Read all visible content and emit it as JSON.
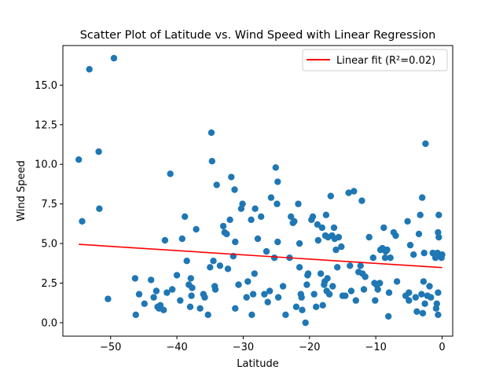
{
  "chart_data": {
    "type": "scatter",
    "title": "Scatter Plot of Latitude vs. Wind Speed with Linear Regression",
    "xlabel": "Latitude",
    "ylabel": "Wind Speed",
    "xlim": [
      -57.2,
      1.6
    ],
    "ylim": [
      -0.85,
      17.5
    ],
    "xticks": [
      -50,
      -40,
      -30,
      -20,
      -10,
      0
    ],
    "xtick_labels": [
      "−50",
      "−40",
      "−30",
      "−20",
      "−10",
      "0"
    ],
    "yticks": [
      0.0,
      2.5,
      5.0,
      7.5,
      10.0,
      12.5,
      15.0
    ],
    "ytick_labels": [
      "0.0",
      "2.5",
      "5.0",
      "7.5",
      "10.0",
      "12.5",
      "15.0"
    ],
    "grid": false,
    "legend_position": "upper right",
    "colors": {
      "points": "#1f77b4",
      "fit_line": "#ff0000"
    },
    "series": [
      {
        "name": "",
        "type": "scatter",
        "points": [
          [
            -54.8,
            10.3
          ],
          [
            -54.3,
            6.4
          ],
          [
            -53.2,
            16.0
          ],
          [
            -51.8,
            10.8
          ],
          [
            -51.7,
            7.2
          ],
          [
            -50.4,
            1.5
          ],
          [
            -49.5,
            16.7
          ],
          [
            -46.3,
            2.8
          ],
          [
            -46.2,
            0.5
          ],
          [
            -45.7,
            1.8
          ],
          [
            -44.9,
            1.2
          ],
          [
            -43.9,
            2.7
          ],
          [
            -43.5,
            1.6
          ],
          [
            -43.1,
            2.0
          ],
          [
            -42.9,
            1.0
          ],
          [
            -42.7,
            0.9
          ],
          [
            -42.5,
            1.1
          ],
          [
            -42.0,
            0.8
          ],
          [
            -41.8,
            5.2
          ],
          [
            -41.5,
            1.9
          ],
          [
            -41.0,
            9.4
          ],
          [
            -40.7,
            2.1
          ],
          [
            -40.0,
            3.0
          ],
          [
            -39.5,
            1.4
          ],
          [
            -39.2,
            5.3
          ],
          [
            -38.8,
            6.7
          ],
          [
            -38.5,
            3.9
          ],
          [
            -38.2,
            2.4
          ],
          [
            -38.0,
            1.0
          ],
          [
            -37.9,
            2.8
          ],
          [
            -37.8,
            1.7
          ],
          [
            -37.7,
            2.2
          ],
          [
            -37.1,
            5.9
          ],
          [
            -36.5,
            0.9
          ],
          [
            -36.0,
            1.8
          ],
          [
            -35.8,
            1.6
          ],
          [
            -35.3,
            0.5
          ],
          [
            -35.0,
            3.5
          ],
          [
            -34.8,
            12.0
          ],
          [
            -34.7,
            10.2
          ],
          [
            -34.5,
            3.9
          ],
          [
            -34.3,
            2.3
          ],
          [
            -34.2,
            2.1
          ],
          [
            -34.0,
            8.7
          ],
          [
            -33.5,
            3.6
          ],
          [
            -33.0,
            6.1
          ],
          [
            -32.8,
            5.7
          ],
          [
            -32.5,
            5.6
          ],
          [
            -32.3,
            3.4
          ],
          [
            -32.0,
            6.5
          ],
          [
            -31.8,
            9.2
          ],
          [
            -31.5,
            4.2
          ],
          [
            -31.3,
            8.4
          ],
          [
            -31.2,
            5.1
          ],
          [
            -31.2,
            0.9
          ],
          [
            -30.7,
            2.4
          ],
          [
            -30.3,
            7.2
          ],
          [
            -30.1,
            7.5
          ],
          [
            -29.5,
            1.6
          ],
          [
            -29.3,
            2.6
          ],
          [
            -28.8,
            6.5
          ],
          [
            -28.7,
            0.5
          ],
          [
            -28.5,
            1.8
          ],
          [
            -28.3,
            3.1
          ],
          [
            -28.2,
            7.2
          ],
          [
            -27.8,
            5.3
          ],
          [
            -27.3,
            6.7
          ],
          [
            -26.8,
            1.8
          ],
          [
            -26.5,
            4.5
          ],
          [
            -26.3,
            1.3
          ],
          [
            -26.0,
            2.0
          ],
          [
            -25.8,
            7.9
          ],
          [
            -25.3,
            4.1
          ],
          [
            -25.1,
            9.8
          ],
          [
            -24.9,
            7.5
          ],
          [
            -24.8,
            8.9
          ],
          [
            -24.8,
            5.1
          ],
          [
            -24.7,
            1.6
          ],
          [
            -24.0,
            2.3
          ],
          [
            -23.6,
            0.5
          ],
          [
            -23.0,
            4.1
          ],
          [
            -22.8,
            6.7
          ],
          [
            -22.5,
            6.3
          ],
          [
            -22.3,
            6.4
          ],
          [
            -22.0,
            1.0
          ],
          [
            -21.7,
            7.5
          ],
          [
            -21.5,
            5.0
          ],
          [
            -21.5,
            3.5
          ],
          [
            -21.3,
            1.8
          ],
          [
            -21.2,
            1.6
          ],
          [
            -21.1,
            0.8
          ],
          [
            -20.6,
            0.0
          ],
          [
            -20.4,
            2.4
          ],
          [
            -20.3,
            3.0
          ],
          [
            -20.2,
            3.1
          ],
          [
            -19.7,
            6.5
          ],
          [
            -19.5,
            6.7
          ],
          [
            -19.3,
            1.8
          ],
          [
            -19.0,
            1.0
          ],
          [
            -18.8,
            6.2
          ],
          [
            -18.7,
            5.2
          ],
          [
            -18.3,
            3.1
          ],
          [
            -18.1,
            6.0
          ],
          [
            -18.0,
            1.1
          ],
          [
            -17.8,
            2.4
          ],
          [
            -17.7,
            2.6
          ],
          [
            -17.6,
            5.5
          ],
          [
            -17.5,
            6.8
          ],
          [
            -17.4,
            2.0
          ],
          [
            -17.3,
            2.8
          ],
          [
            -17.2,
            5.4
          ],
          [
            -17.0,
            1.8
          ],
          [
            -16.8,
            8.0
          ],
          [
            -16.6,
            5.5
          ],
          [
            -16.5,
            2.3
          ],
          [
            -16.3,
            6.0
          ],
          [
            -16.2,
            5.3
          ],
          [
            -16.0,
            4.6
          ],
          [
            -15.8,
            3.5
          ],
          [
            -15.6,
            5.4
          ],
          [
            -15.2,
            4.8
          ],
          [
            -15.0,
            1.7
          ],
          [
            -14.6,
            1.7
          ],
          [
            -14.1,
            8.2
          ],
          [
            -13.9,
            3.6
          ],
          [
            -13.7,
            2.0
          ],
          [
            -13.3,
            8.3
          ],
          [
            -13.0,
            1.4
          ],
          [
            -12.6,
            3.2
          ],
          [
            -12.3,
            3.6
          ],
          [
            -12.1,
            7.7
          ],
          [
            -12.0,
            3.1
          ],
          [
            -11.8,
            2.1
          ],
          [
            -11.6,
            2.9
          ],
          [
            -11.0,
            5.4
          ],
          [
            -10.4,
            4.1
          ],
          [
            -10.2,
            2.5
          ],
          [
            -10.1,
            1.4
          ],
          [
            -9.9,
            2.4
          ],
          [
            -9.7,
            2.1
          ],
          [
            -9.4,
            2.5
          ],
          [
            -9.3,
            4.6
          ],
          [
            -9.0,
            4.7
          ],
          [
            -8.8,
            6.0
          ],
          [
            -8.6,
            4.1
          ],
          [
            -8.5,
            4.5
          ],
          [
            -8.3,
            4.6
          ],
          [
            -8.1,
            0.4
          ],
          [
            -8.0,
            1.9
          ],
          [
            -7.8,
            4.1
          ],
          [
            -7.3,
            5.7
          ],
          [
            -7.0,
            5.5
          ],
          [
            -6.8,
            2.6
          ],
          [
            -5.5,
            1.7
          ],
          [
            -5.2,
            6.4
          ],
          [
            -5.0,
            1.4
          ],
          [
            -5.0,
            1.9
          ],
          [
            -4.8,
            4.9
          ],
          [
            -4.3,
            4.3
          ],
          [
            -4.0,
            1.6
          ],
          [
            -3.8,
            0.7
          ],
          [
            -3.5,
            5.6
          ],
          [
            -3.3,
            6.8
          ],
          [
            -3.1,
            1.8
          ],
          [
            -3.0,
            7.9
          ],
          [
            -2.9,
            0.6
          ],
          [
            -2.8,
            2.6
          ],
          [
            -2.7,
            4.4
          ],
          [
            -2.6,
            1.2
          ],
          [
            -2.5,
            11.3
          ],
          [
            -2.2,
            1.7
          ],
          [
            -1.9,
            2.3
          ],
          [
            -1.7,
            1.6
          ],
          [
            -1.4,
            4.4
          ],
          [
            -1.1,
            4.3
          ],
          [
            -1.0,
            4.1
          ],
          [
            -0.9,
            0.9
          ],
          [
            -0.8,
            1.2
          ],
          [
            -0.7,
            4.4
          ],
          [
            -0.6,
            0.5
          ],
          [
            -0.6,
            1.9
          ],
          [
            -0.6,
            5.7
          ],
          [
            -0.5,
            5.4
          ],
          [
            -0.5,
            6.8
          ],
          [
            -0.3,
            4.2
          ],
          [
            -0.1,
            4.1
          ],
          [
            0.0,
            4.3
          ]
        ]
      },
      {
        "name": "Linear fit (R²=0.02)",
        "type": "line",
        "points": [
          [
            -54.8,
            4.95
          ],
          [
            0.0,
            3.48
          ]
        ]
      }
    ]
  }
}
